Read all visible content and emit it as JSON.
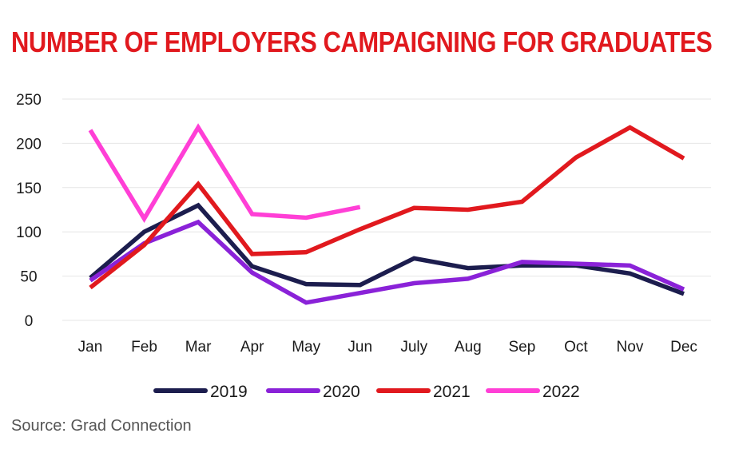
{
  "title": "NUMBER OF EMPLOYERS CAMPAIGNING FOR GRADUATES",
  "source": "Source: Grad Connection",
  "chart_data": {
    "type": "line",
    "title": "NUMBER OF EMPLOYERS CAMPAIGNING FOR GRADUATES",
    "xlabel": "",
    "ylabel": "",
    "categories": [
      "Jan",
      "Feb",
      "Mar",
      "Apr",
      "May",
      "Jun",
      "July",
      "Aug",
      "Sep",
      "Oct",
      "Nov",
      "Dec"
    ],
    "yticks": [
      0,
      50,
      100,
      150,
      200,
      250
    ],
    "ylim": [
      0,
      250
    ],
    "grid": true,
    "legend_position": "bottom",
    "series": [
      {
        "name": "2019",
        "color": "#1c1d4e",
        "values": [
          48,
          100,
          130,
          61,
          41,
          40,
          70,
          59,
          62,
          62,
          53,
          30
        ]
      },
      {
        "name": "2020",
        "color": "#8a22d8",
        "values": [
          45,
          87,
          111,
          54,
          20,
          31,
          42,
          47,
          66,
          64,
          62,
          35
        ]
      },
      {
        "name": "2021",
        "color": "#e1191e",
        "values": [
          37,
          85,
          154,
          75,
          77,
          103,
          127,
          125,
          134,
          184,
          218,
          183
        ]
      },
      {
        "name": "2022",
        "color": "#ff3fd6",
        "values": [
          215,
          115,
          218,
          120,
          116,
          128,
          null,
          null,
          null,
          null,
          null,
          null
        ]
      }
    ]
  }
}
